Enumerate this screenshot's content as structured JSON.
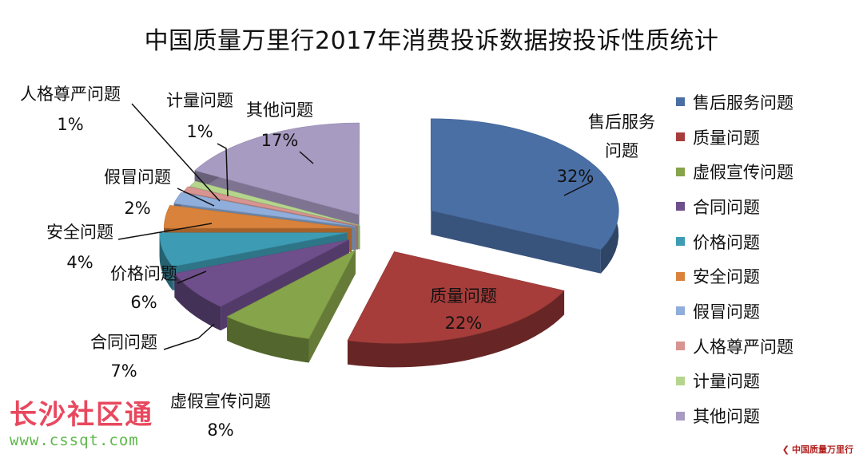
{
  "chart_data": {
    "type": "pie",
    "title": "中国质量万里行2017年消费投诉数据按投诉性质统计",
    "categories": [
      "售后服务问题",
      "质量问题",
      "虚假宣传问题",
      "合同问题",
      "价格问题",
      "安全问题",
      "假冒问题",
      "人格尊严问题",
      "计量问题",
      "其他问题"
    ],
    "values": [
      32,
      22,
      8,
      7,
      6,
      4,
      2,
      1,
      1,
      17
    ],
    "value_labels": [
      "32%",
      "22%",
      "8%",
      "7%",
      "6%",
      "4%",
      "2%",
      "1%",
      "1%",
      "17%"
    ],
    "colors": [
      "#4a6fa5",
      "#a63d3b",
      "#86a449",
      "#6e4f8c",
      "#3d9cb4",
      "#d9823b",
      "#8faedb",
      "#d89490",
      "#b5d58d",
      "#a89bc2"
    ],
    "style": "3d-exploded",
    "legend": "right"
  },
  "data_labels": {
    "售后服务问题": "售后服务\n问题",
    "质量问题": "质量问题",
    "虚假宣传问题": "虚假宣传问题",
    "合同问题": "合同问题",
    "价格问题": "价格问题",
    "安全问题": "安全问题",
    "假冒问题": "假冒问题",
    "人格尊严问题": "人格尊严问题",
    "计量问题": "计量问题",
    "其他问题": "其他问题"
  },
  "watermark": {
    "main": "长沙社区通",
    "url": "www.cssqt.com"
  },
  "corner_logo": "中国质量万里行"
}
